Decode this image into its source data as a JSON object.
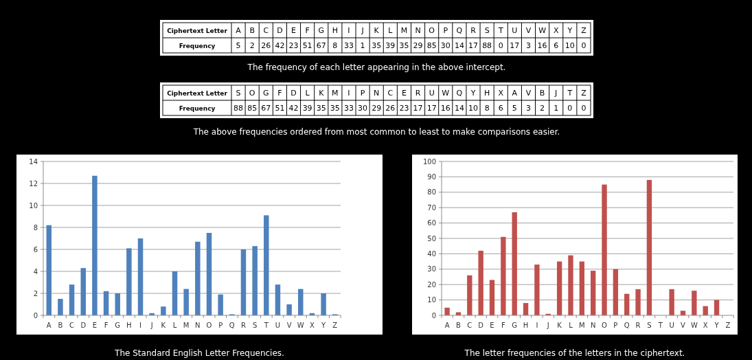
{
  "chart_data": [
    {
      "type": "other",
      "xlabel": "Ciphertext Letter",
      "ylabel": "Frequency",
      "categories": [
        "A",
        "B",
        "C",
        "D",
        "E",
        "F",
        "G",
        "H",
        "I",
        "J",
        "K",
        "L",
        "M",
        "N",
        "O",
        "P",
        "Q",
        "R",
        "S",
        "T",
        "U",
        "V",
        "W",
        "X",
        "Y",
        "Z"
      ],
      "values": [
        5,
        2,
        26,
        42,
        23,
        51,
        67,
        8,
        33,
        1,
        35,
        39,
        35,
        29,
        85,
        30,
        14,
        17,
        88,
        0,
        17,
        3,
        16,
        6,
        10,
        0
      ],
      "data_labels": true,
      "annotations": [
        "The frequency of each letter appearing in the above intercept."
      ]
    },
    {
      "type": "other",
      "xlabel": "Ciphertext Letter",
      "ylabel": "Frequency",
      "categories": [
        "S",
        "O",
        "G",
        "F",
        "D",
        "L",
        "K",
        "M",
        "I",
        "P",
        "N",
        "C",
        "E",
        "R",
        "U",
        "W",
        "Q",
        "Y",
        "H",
        "X",
        "A",
        "V",
        "B",
        "J",
        "T",
        "Z"
      ],
      "values": [
        88,
        85,
        67,
        51,
        42,
        39,
        35,
        35,
        33,
        30,
        29,
        26,
        23,
        17,
        17,
        16,
        14,
        10,
        8,
        6,
        5,
        3,
        2,
        1,
        0,
        0
      ],
      "data_labels": true,
      "annotations": [
        "The above frequencies ordered from most common to least to make comparisons easier."
      ]
    },
    {
      "type": "bar",
      "categories": [
        "A",
        "B",
        "C",
        "D",
        "E",
        "F",
        "G",
        "H",
        "I",
        "J",
        "K",
        "L",
        "M",
        "N",
        "O",
        "P",
        "Q",
        "R",
        "S",
        "T",
        "U",
        "V",
        "W",
        "X",
        "Y",
        "Z"
      ],
      "values": [
        8.2,
        1.5,
        2.8,
        4.3,
        12.7,
        2.2,
        2.0,
        6.1,
        7.0,
        0.2,
        0.8,
        4.0,
        2.4,
        6.7,
        7.5,
        1.9,
        0.1,
        6.0,
        6.3,
        9.1,
        2.8,
        1.0,
        2.4,
        0.2,
        2.0,
        0.1
      ],
      "color": "#4f81bd",
      "ylim": [
        0,
        14
      ],
      "yticks": [
        0,
        2,
        4,
        6,
        8,
        10,
        12,
        14
      ],
      "grid": "y",
      "annotations": [
        "The Standard English Letter Frequencies."
      ]
    },
    {
      "type": "bar",
      "categories": [
        "A",
        "B",
        "C",
        "D",
        "E",
        "F",
        "G",
        "H",
        "I",
        "J",
        "K",
        "L",
        "M",
        "N",
        "O",
        "P",
        "Q",
        "R",
        "S",
        "T",
        "U",
        "V",
        "W",
        "X",
        "Y",
        "Z"
      ],
      "values": [
        5,
        2,
        26,
        42,
        23,
        51,
        67,
        8,
        33,
        1,
        35,
        39,
        35,
        29,
        85,
        30,
        14,
        17,
        88,
        0,
        17,
        3,
        16,
        6,
        10,
        0
      ],
      "color": "#c0504d",
      "ylim": [
        0,
        100
      ],
      "yticks": [
        0,
        10,
        20,
        30,
        40,
        50,
        60,
        70,
        80,
        90,
        100
      ],
      "grid": "y",
      "annotations": [
        "The letter frequencies of the letters in the ciphertext."
      ]
    }
  ]
}
